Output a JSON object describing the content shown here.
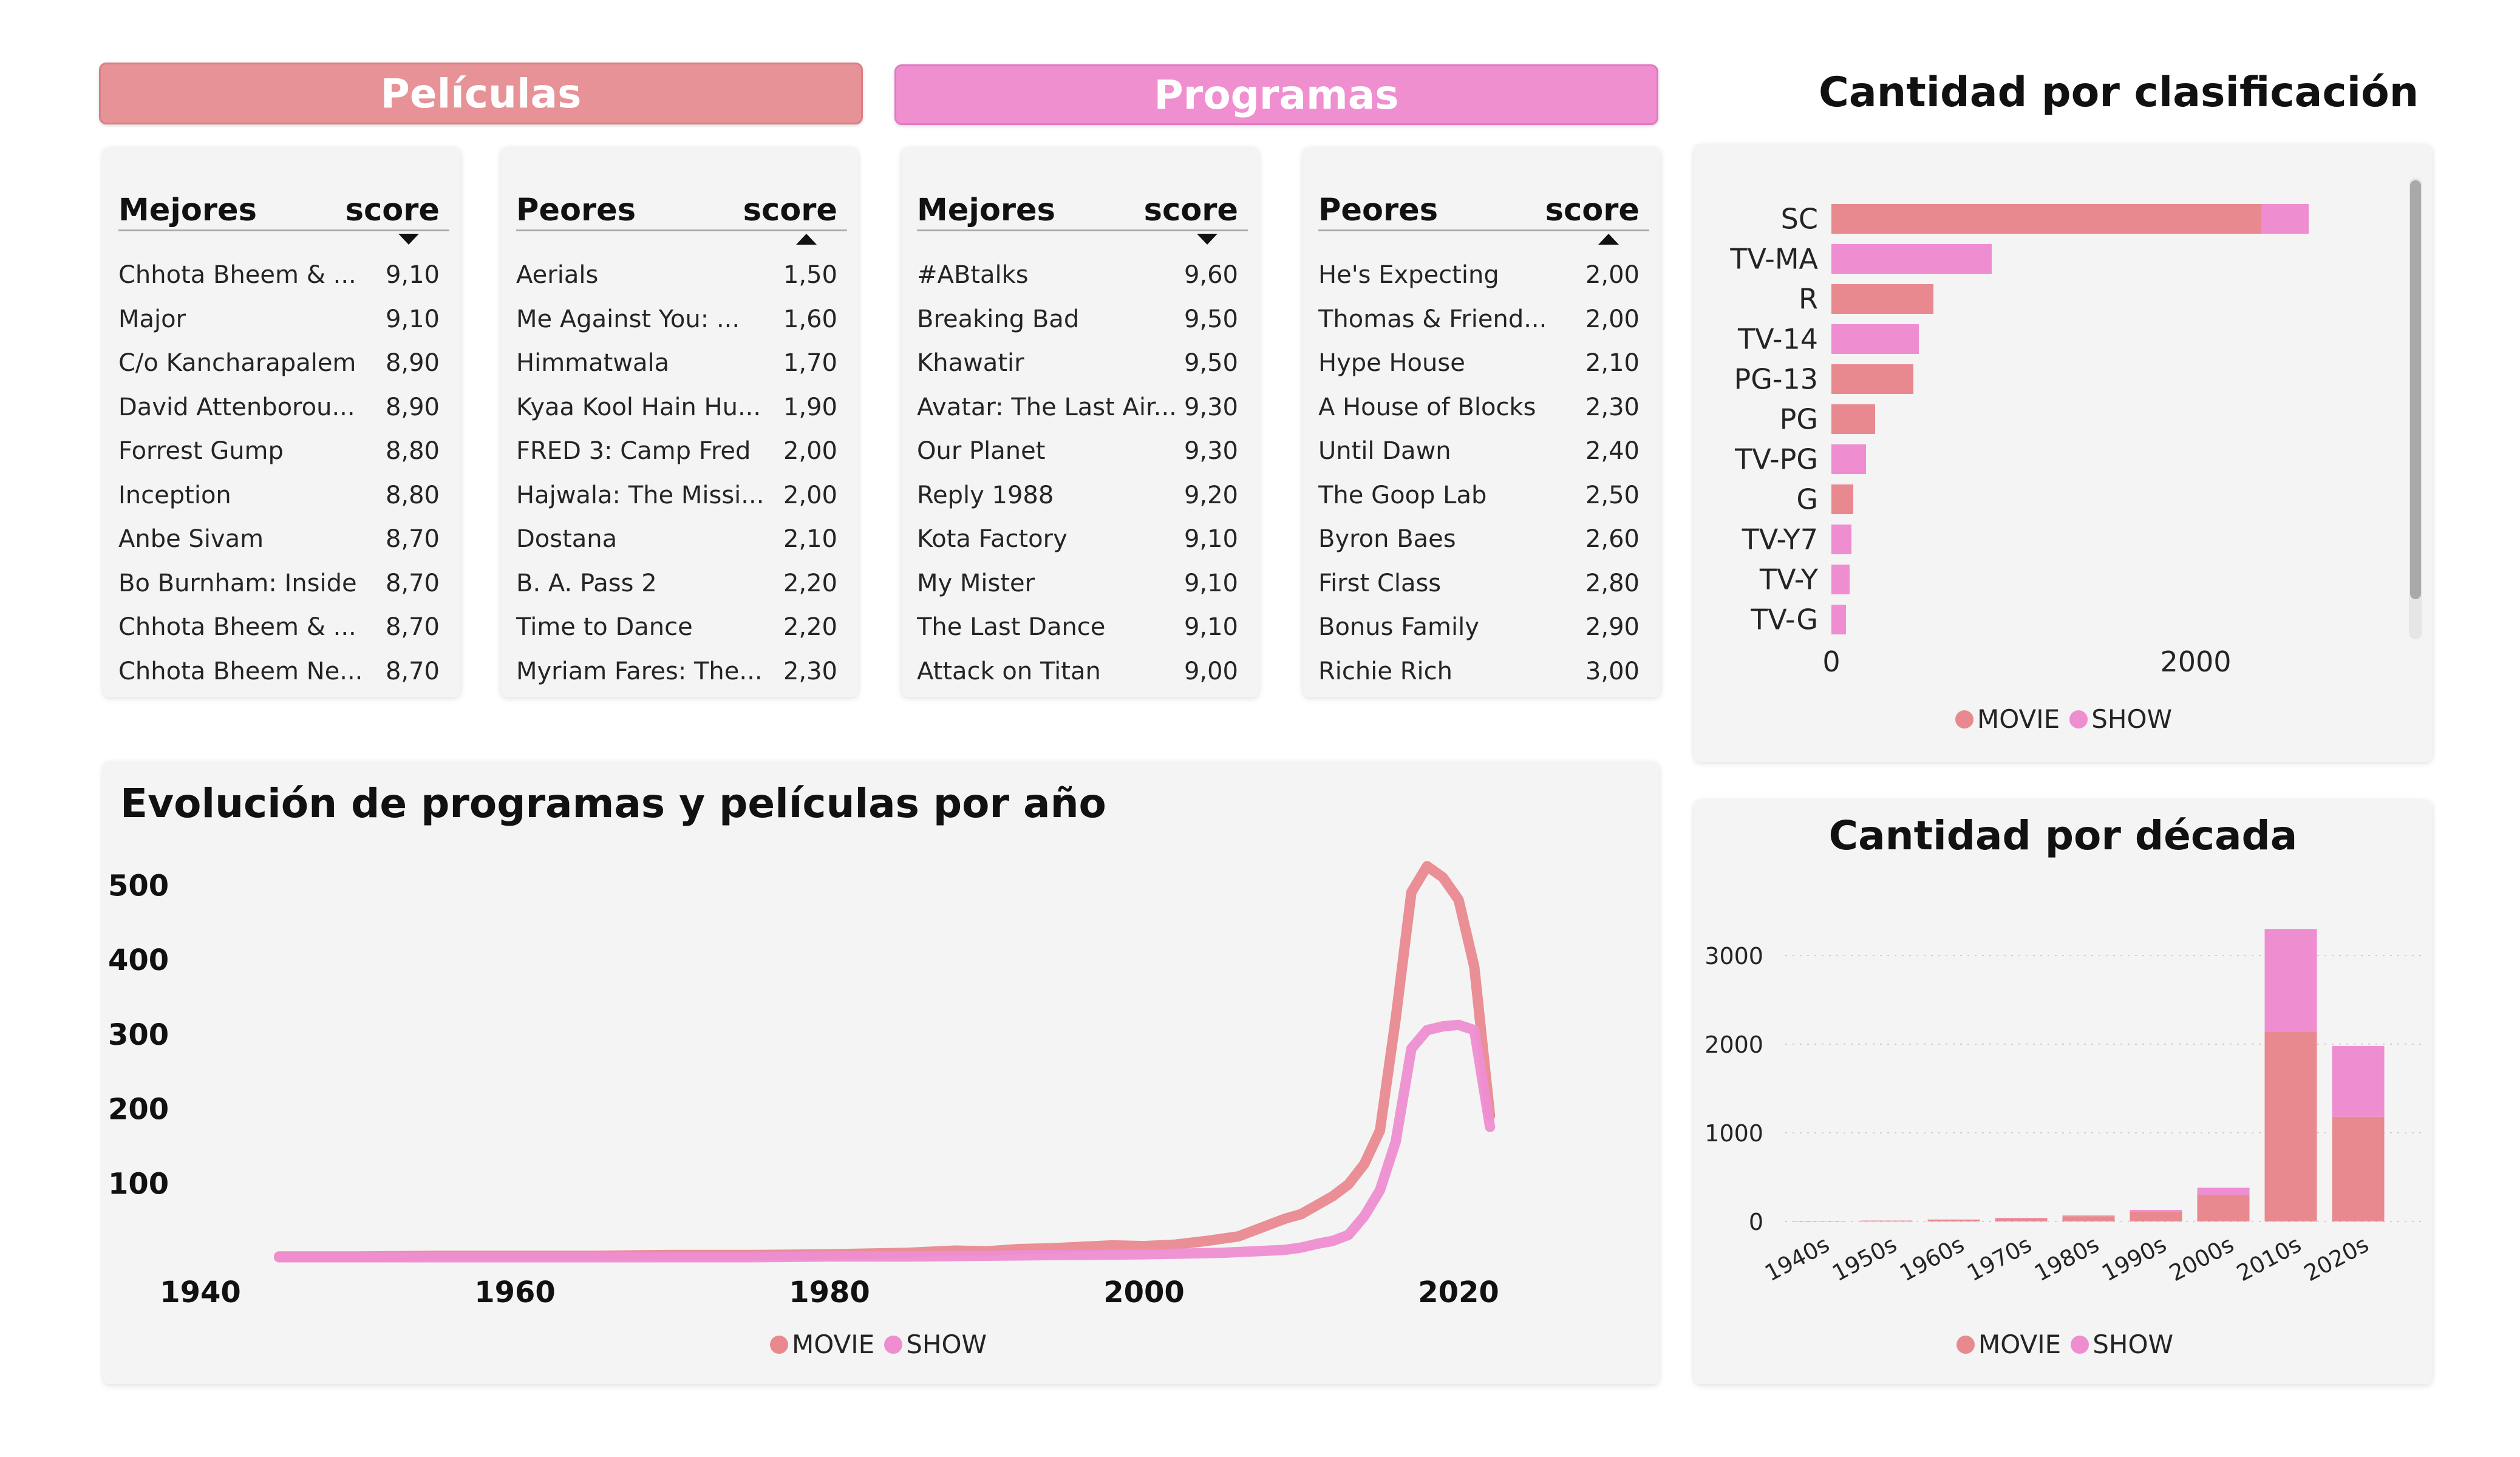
{
  "colors": {
    "movie": "#e8898f",
    "show": "#ee8ed1"
  },
  "banners": {
    "movies": "Películas",
    "shows": "Programas"
  },
  "tables": [
    {
      "name_header": "Mejores",
      "score_header": "score",
      "sort": "desc",
      "rows": [
        {
          "name": "Chhota Bheem & ...",
          "score": "9,10"
        },
        {
          "name": "Major",
          "score": "9,10"
        },
        {
          "name": "C/o Kancharapalem",
          "score": "8,90"
        },
        {
          "name": "David Attenborou...",
          "score": "8,90"
        },
        {
          "name": "Forrest Gump",
          "score": "8,80"
        },
        {
          "name": "Inception",
          "score": "8,80"
        },
        {
          "name": "Anbe Sivam",
          "score": "8,70"
        },
        {
          "name": "Bo Burnham: Inside",
          "score": "8,70"
        },
        {
          "name": "Chhota Bheem & ...",
          "score": "8,70"
        },
        {
          "name": "Chhota Bheem Ne...",
          "score": "8,70"
        }
      ]
    },
    {
      "name_header": "Peores",
      "score_header": "score",
      "sort": "asc",
      "rows": [
        {
          "name": "Aerials",
          "score": "1,50"
        },
        {
          "name": "Me Against You: ...",
          "score": "1,60"
        },
        {
          "name": "Himmatwala",
          "score": "1,70"
        },
        {
          "name": "Kyaa Kool Hain Hu...",
          "score": "1,90"
        },
        {
          "name": "FRED 3: Camp Fred",
          "score": "2,00"
        },
        {
          "name": "Hajwala: The Missi...",
          "score": "2,00"
        },
        {
          "name": "Dostana",
          "score": "2,10"
        },
        {
          "name": "B. A. Pass 2",
          "score": "2,20"
        },
        {
          "name": "Time to Dance",
          "score": "2,20"
        },
        {
          "name": "Myriam Fares: The...",
          "score": "2,30"
        }
      ]
    },
    {
      "name_header": "Mejores",
      "score_header": "score",
      "sort": "desc",
      "rows": [
        {
          "name": "#ABtalks",
          "score": "9,60"
        },
        {
          "name": "Breaking Bad",
          "score": "9,50"
        },
        {
          "name": "Khawatir",
          "score": "9,50"
        },
        {
          "name": "Avatar: The Last Air...",
          "score": "9,30"
        },
        {
          "name": "Our Planet",
          "score": "9,30"
        },
        {
          "name": "Reply 1988",
          "score": "9,20"
        },
        {
          "name": "Kota Factory",
          "score": "9,10"
        },
        {
          "name": "My Mister",
          "score": "9,10"
        },
        {
          "name": "The Last Dance",
          "score": "9,10"
        },
        {
          "name": "Attack on Titan",
          "score": "9,00"
        }
      ]
    },
    {
      "name_header": "Peores",
      "score_header": "score",
      "sort": "asc",
      "rows": [
        {
          "name": "He's Expecting",
          "score": "2,00"
        },
        {
          "name": "Thomas & Friend...",
          "score": "2,00"
        },
        {
          "name": "Hype House",
          "score": "2,10"
        },
        {
          "name": "A House of Blocks",
          "score": "2,30"
        },
        {
          "name": "Until Dawn",
          "score": "2,40"
        },
        {
          "name": "The Goop Lab",
          "score": "2,50"
        },
        {
          "name": "Byron Baes",
          "score": "2,60"
        },
        {
          "name": "First Class",
          "score": "2,80"
        },
        {
          "name": "Bonus Family",
          "score": "2,90"
        },
        {
          "name": "Richie Rich",
          "score": "3,00"
        }
      ]
    }
  ],
  "chart_data": [
    {
      "type": "bar",
      "orientation": "horizontal",
      "stacked": true,
      "title": "Cantidad por clasificación",
      "categories": [
        "SC",
        "TV-MA",
        "R",
        "TV-14",
        "PG-13",
        "PG",
        "TV-PG",
        "G",
        "TV-Y7",
        "TV-Y",
        "TV-G"
      ],
      "series": [
        {
          "name": "MOVIE",
          "values": [
            2360,
            0,
            560,
            0,
            450,
            240,
            0,
            120,
            0,
            0,
            0
          ]
        },
        {
          "name": "SHOW",
          "values": [
            260,
            880,
            0,
            480,
            0,
            0,
            190,
            0,
            110,
            100,
            80
          ]
        }
      ],
      "xlim": [
        0,
        2800
      ],
      "xticks": [
        "0",
        "2000"
      ],
      "legend": "bottom-center"
    },
    {
      "type": "line",
      "title": "Evolución de programas y películas por año",
      "xticks": [
        "1940",
        "1960",
        "1980",
        "2000",
        "2020"
      ],
      "yticks": [
        "100",
        "200",
        "300",
        "400",
        "500"
      ],
      "xlim": [
        1935,
        2030
      ],
      "ylim": [
        0,
        560
      ],
      "series": [
        {
          "name": "MOVIE",
          "x": [
            1945,
            1950,
            1955,
            1960,
            1965,
            1970,
            1975,
            1980,
            1985,
            1988,
            1990,
            1992,
            1994,
            1996,
            1998,
            2000,
            2002,
            2004,
            2006,
            2007,
            2008,
            2009,
            2010,
            2011,
            2012,
            2013,
            2014,
            2015,
            2016,
            2017,
            2018,
            2019,
            2020,
            2021,
            2022
          ],
          "y": [
            1,
            1,
            2,
            2,
            2,
            3,
            3,
            4,
            6,
            9,
            8,
            11,
            12,
            14,
            16,
            15,
            17,
            22,
            28,
            36,
            44,
            52,
            58,
            70,
            82,
            98,
            125,
            170,
            320,
            490,
            525,
            510,
            480,
            390,
            190
          ]
        },
        {
          "name": "SHOW",
          "x": [
            1945,
            1950,
            1955,
            1960,
            1965,
            1970,
            1975,
            1980,
            1985,
            1990,
            1995,
            2000,
            2005,
            2007,
            2009,
            2010,
            2011,
            2012,
            2013,
            2014,
            2015,
            2016,
            2017,
            2018,
            2019,
            2020,
            2021,
            2022
          ],
          "y": [
            0,
            0,
            0,
            0,
            0,
            0,
            0,
            1,
            1,
            2,
            3,
            4,
            6,
            8,
            10,
            13,
            18,
            22,
            30,
            55,
            90,
            155,
            280,
            305,
            310,
            312,
            305,
            175
          ]
        }
      ],
      "legend": "bottom-center"
    },
    {
      "type": "bar",
      "stacked": true,
      "title": "Cantidad por década",
      "categories": [
        "1940s",
        "1950s",
        "1960s",
        "1970s",
        "1980s",
        "1990s",
        "2000s",
        "2010s",
        "2020s"
      ],
      "series": [
        {
          "name": "MOVIE",
          "values": [
            5,
            10,
            20,
            35,
            60,
            110,
            300,
            2140,
            1180
          ]
        },
        {
          "name": "SHOW",
          "values": [
            0,
            0,
            2,
            5,
            8,
            20,
            80,
            1160,
            800
          ]
        }
      ],
      "ylim": [
        0,
        3500
      ],
      "yticks": [
        "0",
        "1000",
        "2000",
        "3000"
      ],
      "grid": true,
      "legend": "bottom-center"
    }
  ]
}
